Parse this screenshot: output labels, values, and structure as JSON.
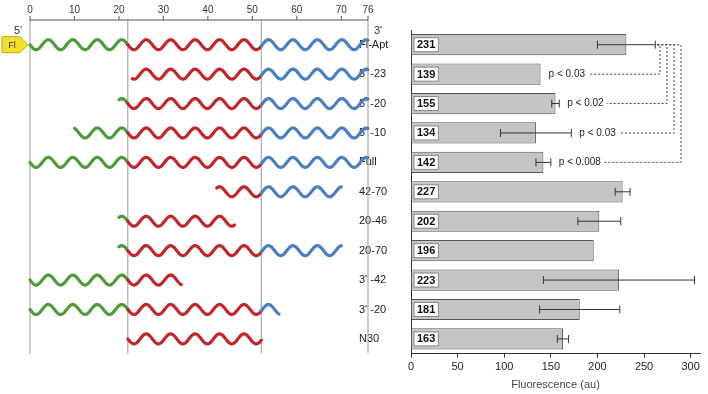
{
  "chart_data": {
    "type": "bar",
    "orientation": "horizontal",
    "categories": [
      "Fl-Apt",
      "5' -23",
      "5' -20",
      "5' -10",
      "Full",
      "42-70",
      "20-46",
      "20-70",
      "3' -42",
      "3' -20",
      "N30"
    ],
    "values": [
      231,
      139,
      155,
      134,
      142,
      227,
      202,
      196,
      223,
      181,
      163
    ],
    "errors": [
      31,
      null,
      4,
      38,
      8,
      8,
      23,
      null,
      81,
      43,
      6
    ],
    "color": "#c4c4c4",
    "xlim": [
      0,
      310
    ],
    "xticks": [
      0,
      50,
      100,
      150,
      200,
      250,
      300
    ],
    "x_label": "Fluorescence (au)",
    "grid": false,
    "data_labels": true,
    "comparisons": [
      {
        "from": "Fl-Apt",
        "to": "5' -23",
        "label": "p < 0.03"
      },
      {
        "from": "Fl-Apt",
        "to": "5' -20",
        "label": "p < 0.02"
      },
      {
        "from": "Fl-Apt",
        "to": "5' -10",
        "label": "p < 0.03"
      },
      {
        "from": "Fl-Apt",
        "to": "Full",
        "label": "p < 0.008"
      }
    ]
  },
  "diagram": {
    "xlim": [
      0,
      76
    ],
    "xticks": [
      0,
      10,
      20,
      30,
      40,
      50,
      60,
      70,
      76
    ],
    "end_labels": [
      "5'",
      "3'"
    ],
    "regions": [
      {
        "start": 0,
        "end": 22,
        "color": "#4f9a3a"
      },
      {
        "start": 22,
        "end": 52,
        "color": "#c0272d"
      },
      {
        "start": 52,
        "end": 76,
        "color": "#4a7fc1"
      }
    ],
    "rows": [
      [
        0,
        76
      ],
      [
        23,
        76
      ],
      [
        20,
        76
      ],
      [
        10,
        76
      ],
      [
        0,
        76
      ],
      [
        42,
        70
      ],
      [
        20,
        46
      ],
      [
        20,
        70
      ],
      [
        0,
        34
      ],
      [
        0,
        56
      ],
      [
        22,
        52
      ]
    ],
    "tag": {
      "label": "Fl",
      "row": "Fl-Apt",
      "color": "#f3e02a"
    }
  }
}
